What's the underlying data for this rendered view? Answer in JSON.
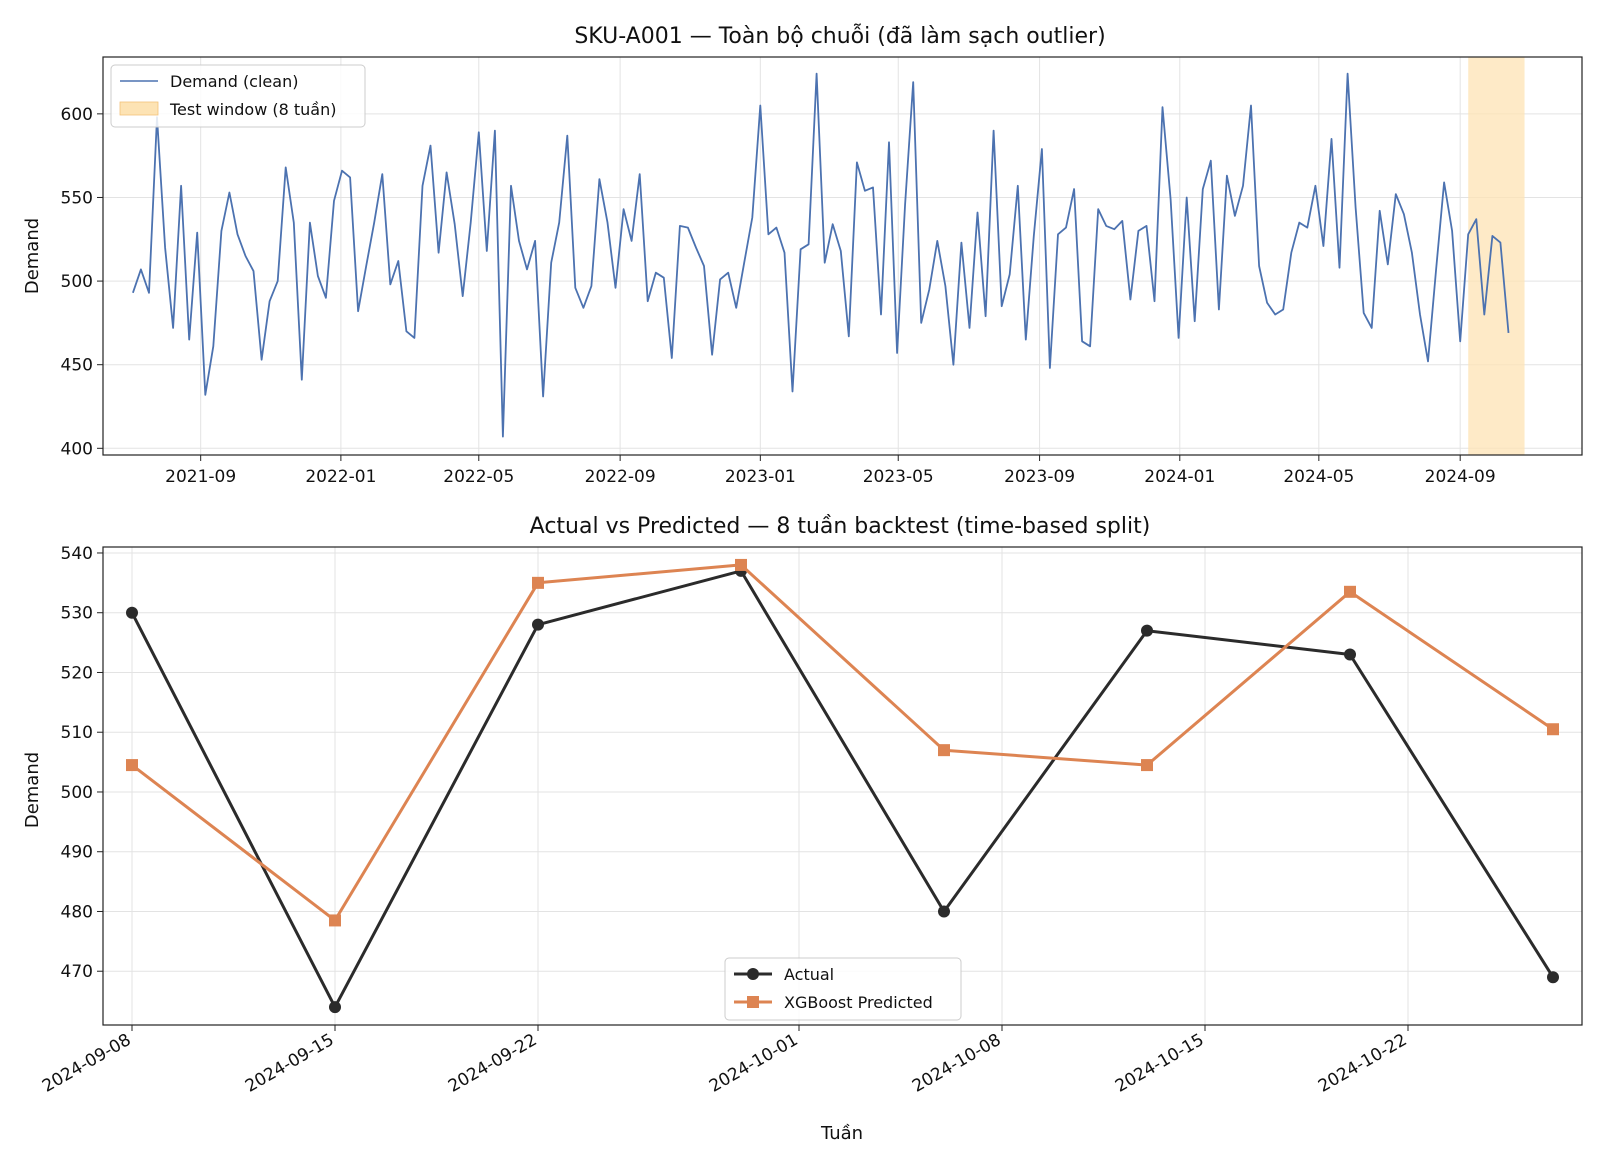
{
  "figure": {
    "background": "#ffffff"
  },
  "chart_data": [
    {
      "type": "line",
      "title": "SKU-A001 — Toàn bộ chuỗi (đã làm sạch outlier)",
      "xlabel": "",
      "ylabel": "Demand",
      "x_start": "2021-07-04",
      "x_step_days": 7,
      "xlim": [
        "2021-06-08",
        "2024-12-16"
      ],
      "ylim": [
        396,
        634
      ],
      "xticks": [
        "2021-09",
        "2022-01",
        "2022-05",
        "2022-09",
        "2023-01",
        "2023-05",
        "2023-09",
        "2024-01",
        "2024-05",
        "2024-09"
      ],
      "yticks": [
        400,
        450,
        500,
        550,
        600
      ],
      "grid": true,
      "legend_position": "upper-left",
      "series": [
        {
          "name": "Demand (clean)",
          "color": "#4c72b0",
          "values": [
            493,
            507,
            493,
            598,
            520,
            472,
            557,
            465,
            529,
            432,
            461,
            530,
            553,
            528,
            515,
            506,
            453,
            488,
            500,
            568,
            535,
            441,
            535,
            503,
            490,
            548,
            566,
            562,
            482,
            509,
            535,
            564,
            498,
            512,
            470,
            466,
            557,
            581,
            517,
            565,
            534,
            491,
            535,
            589,
            518,
            590,
            407,
            557,
            524,
            507,
            524,
            431,
            511,
            535,
            587,
            496,
            484,
            497,
            561,
            535,
            496,
            543,
            524,
            564,
            488,
            505,
            502,
            454,
            533,
            532,
            520,
            509,
            456,
            501,
            505,
            484,
            511,
            538,
            605,
            528,
            532,
            517,
            434,
            519,
            522,
            624,
            511,
            534,
            518,
            467,
            571,
            554,
            556,
            480,
            583,
            457,
            546,
            619,
            475,
            495,
            524,
            497,
            450,
            523,
            472,
            541,
            479,
            590,
            485,
            504,
            557,
            465,
            527,
            579,
            448,
            528,
            532,
            555,
            464,
            461,
            543,
            533,
            531,
            536,
            489,
            530,
            533,
            488,
            604,
            549,
            466,
            550,
            476,
            555,
            572,
            483,
            563,
            539,
            557,
            605,
            509,
            487,
            480,
            483,
            517,
            535,
            532,
            557,
            521,
            585,
            508,
            624,
            544,
            481,
            472,
            542,
            510,
            552,
            540,
            517,
            480,
            452,
            507,
            559,
            530,
            464,
            528,
            537,
            480,
            527,
            523,
            469
          ]
        }
      ],
      "highlight_region": {
        "label": "Test window (8 tuần)",
        "start": "2024-09-08",
        "end": "2024-10-27",
        "color": "#fde3b4"
      }
    },
    {
      "type": "line",
      "title": "Actual vs Predicted — 8 tuần backtest (time-based split)",
      "xlabel": "Tuần",
      "ylabel": "Demand",
      "x": [
        "2024-09-08",
        "2024-09-15",
        "2024-09-22",
        "2024-09-29",
        "2024-10-06",
        "2024-10-13",
        "2024-10-20",
        "2024-10-27"
      ],
      "xlim": [
        "2024-09-07",
        "2024-10-28"
      ],
      "ylim": [
        461,
        541
      ],
      "xticks": [
        "2024-09-08",
        "2024-09-15",
        "2024-09-22",
        "2024-10-01",
        "2024-10-08",
        "2024-10-15",
        "2024-10-22"
      ],
      "yticks": [
        470,
        480,
        490,
        500,
        510,
        520,
        530,
        540
      ],
      "grid": true,
      "legend_position": "lower-center",
      "series": [
        {
          "name": "Actual",
          "color": "#2b2b2b",
          "marker": "circle",
          "values": [
            530,
            464,
            528,
            537,
            480,
            527,
            523,
            469
          ]
        },
        {
          "name": "XGBoost Predicted",
          "color": "#dd8452",
          "marker": "square",
          "values": [
            504.5,
            478.5,
            535,
            538,
            507,
            504.5,
            533.5,
            510.5
          ]
        }
      ]
    }
  ]
}
